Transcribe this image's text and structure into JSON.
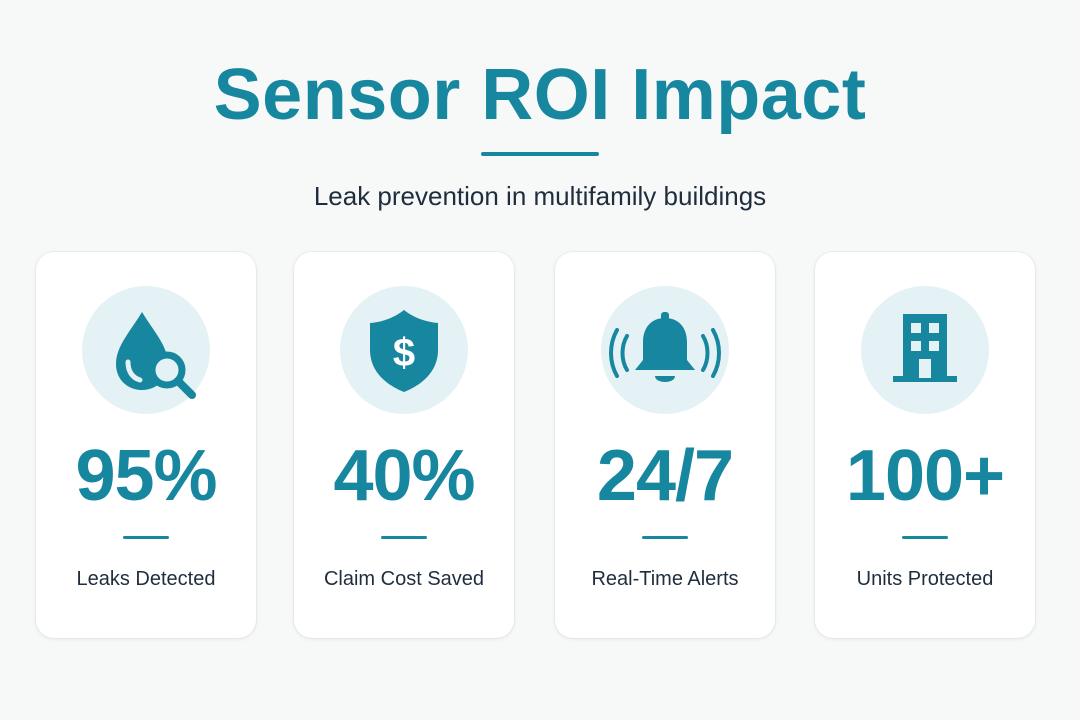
{
  "header": {
    "title": "Sensor ROI Impact",
    "subtitle": "Leak prevention in multifamily buildings"
  },
  "colors": {
    "accent": "#17869f",
    "icon_bg": "#e4f2f5",
    "text": "#1f2d3d",
    "background": "#f7f8f8"
  },
  "cards": [
    {
      "icon": "water-drop-search-icon",
      "value": "95%",
      "label": "Leaks Detected"
    },
    {
      "icon": "shield-dollar-icon",
      "value": "40%",
      "label": "Claim Cost Saved"
    },
    {
      "icon": "ringing-bell-icon",
      "value": "24/7",
      "label": "Real-Time Alerts"
    },
    {
      "icon": "building-icon",
      "value": "100+",
      "label": "Units Protected"
    }
  ]
}
